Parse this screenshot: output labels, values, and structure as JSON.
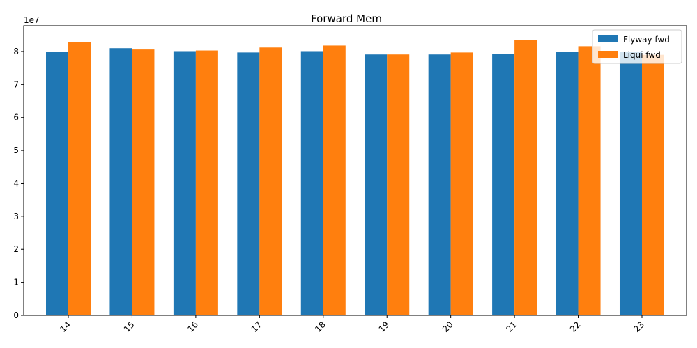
{
  "chart_data": {
    "type": "bar",
    "title": "Forward Mem",
    "xlabel": "",
    "ylabel": "",
    "y_multiplier_label": "1e7",
    "categories": [
      "14",
      "15",
      "16",
      "17",
      "18",
      "19",
      "20",
      "21",
      "22",
      "23"
    ],
    "series": [
      {
        "name": "Flyway fwd",
        "color": "#1f77b4",
        "values": [
          79900000,
          81000000,
          80100000,
          79700000,
          80100000,
          79100000,
          79100000,
          79300000,
          79900000,
          79800000
        ]
      },
      {
        "name": "Liqui fwd",
        "color": "#ff7f0e",
        "values": [
          82900000,
          80600000,
          80300000,
          81200000,
          81800000,
          79100000,
          79700000,
          83500000,
          81600000,
          79000000
        ]
      }
    ],
    "ylim": [
      0,
      87800000
    ],
    "yticks": [
      0,
      10000000,
      20000000,
      30000000,
      40000000,
      50000000,
      60000000,
      70000000,
      80000000
    ],
    "ytick_labels": [
      "0",
      "1",
      "2",
      "3",
      "4",
      "5",
      "6",
      "7",
      "8"
    ],
    "legend_position": "upper-right",
    "grid": false
  }
}
